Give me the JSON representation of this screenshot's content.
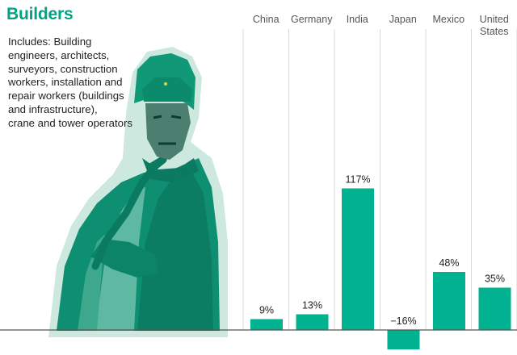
{
  "header": {
    "title": "Builders",
    "description_lines": [
      "Includes: Building",
      "engineers, architects,",
      "surveyors, construction",
      "workers, installation and",
      "repair workers (buildings",
      "and infrastructure),",
      "crane and tower operators"
    ]
  },
  "colors": {
    "accent": "#00b28f",
    "title": "#00a383"
  },
  "icons": {
    "illustration": "welder-worker-illustration"
  },
  "chart_data": {
    "type": "bar",
    "title": "Builders",
    "xlabel": "",
    "ylabel": "",
    "categories": [
      {
        "lines": [
          "China"
        ]
      },
      {
        "lines": [
          "Germany"
        ]
      },
      {
        "lines": [
          "India"
        ]
      },
      {
        "lines": [
          "Japan"
        ]
      },
      {
        "lines": [
          "Mexico"
        ]
      },
      {
        "lines": [
          "United",
          "States"
        ]
      }
    ],
    "values": [
      9,
      13,
      117,
      -16,
      48,
      35
    ],
    "value_labels": [
      "9%",
      "13%",
      "117%",
      "−16%",
      "48%",
      "35%"
    ],
    "unit": "%",
    "ylim": [
      -16,
      117
    ],
    "grid": "vertical separators"
  }
}
